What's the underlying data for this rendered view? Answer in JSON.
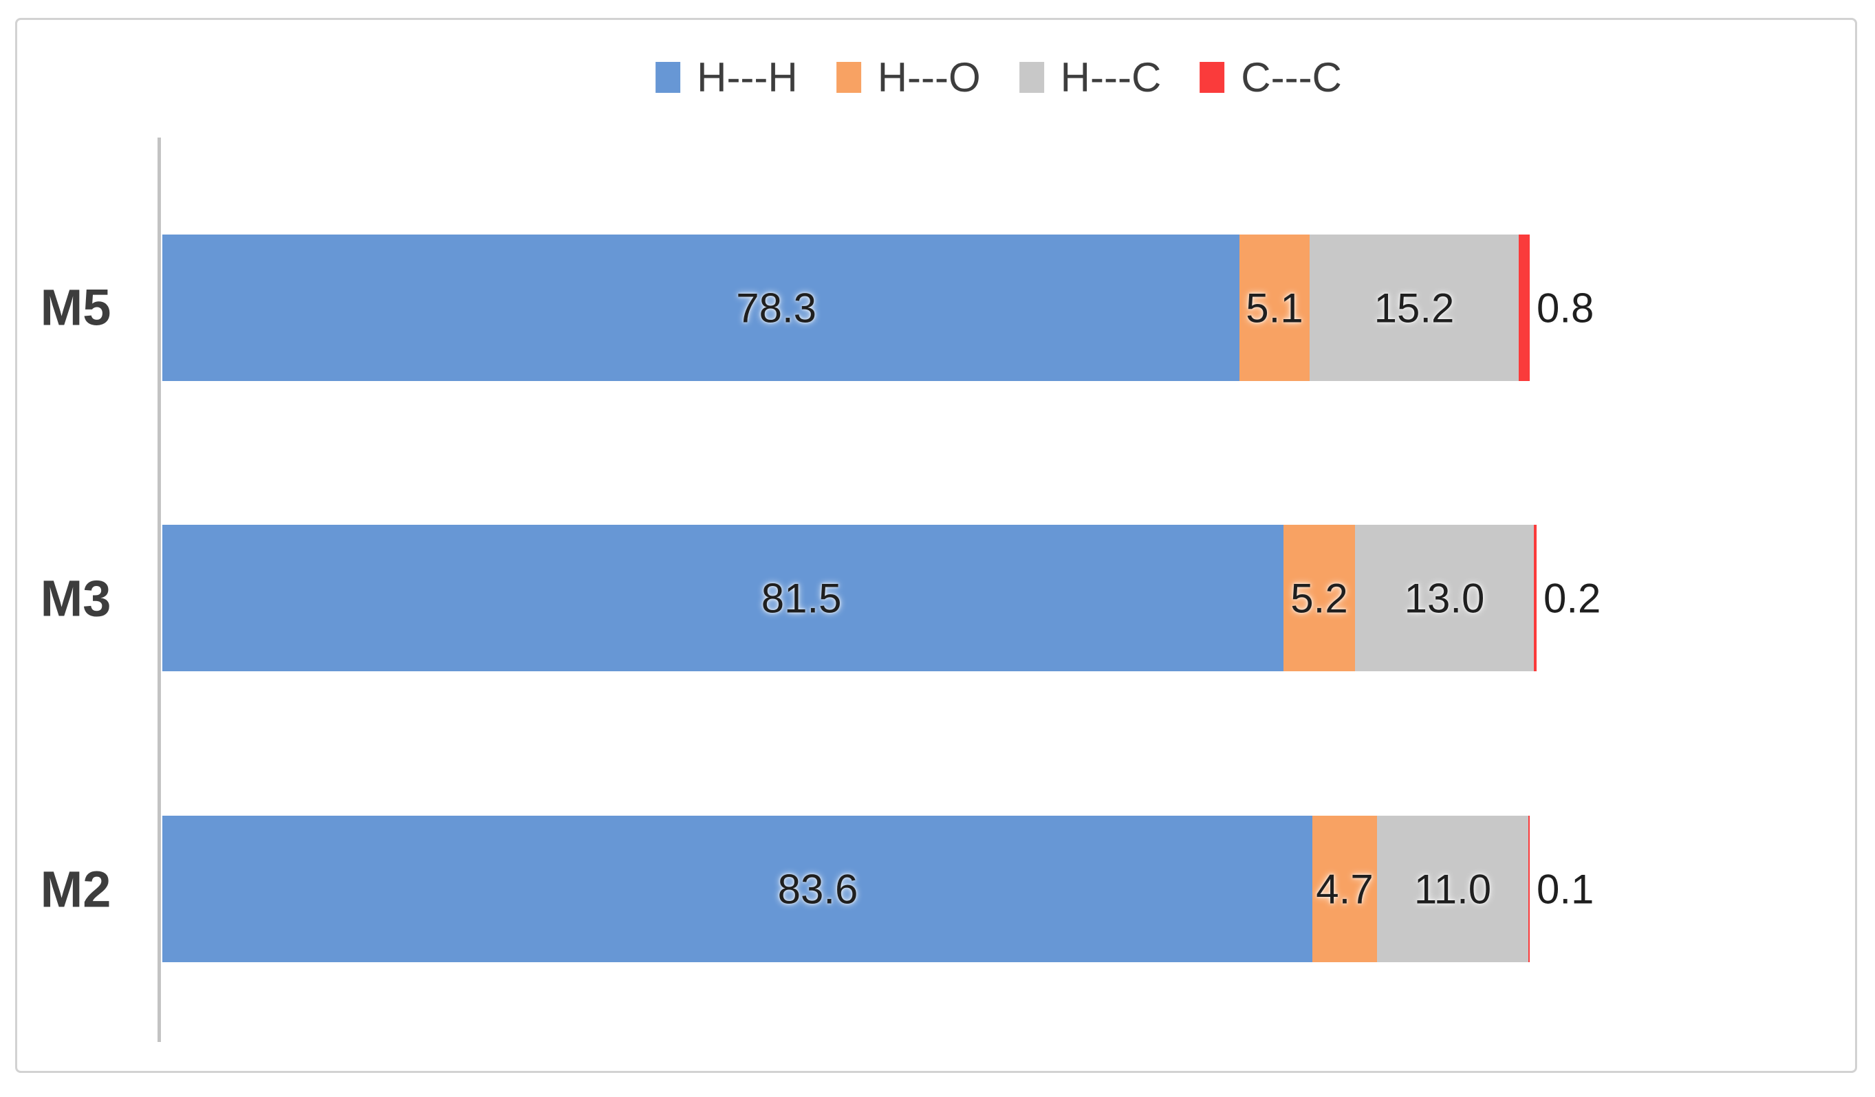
{
  "figure": {
    "background": "#ffffff",
    "frame_color": "#d2d2d2",
    "axis_line_color": "#c3c3c3",
    "label_text_color": "#3d3d3d",
    "value_text_color": "#1f1f1f"
  },
  "legend": {
    "items": [
      {
        "label": "H---H",
        "color": "#6797D5"
      },
      {
        "label": "H---O",
        "color": "#F8A263"
      },
      {
        "label": "H---C",
        "color": "#C8C8C8"
      },
      {
        "label": "C---C",
        "color": "#FA3B3B"
      }
    ]
  },
  "chart_data": {
    "type": "bar",
    "orientation": "horizontal",
    "stacked": true,
    "title": "",
    "xlabel": "",
    "ylabel": "",
    "categories": [
      "M5",
      "M3",
      "M2"
    ],
    "series": [
      {
        "name": "H---H",
        "color": "#6797D5",
        "values": [
          78.3,
          81.5,
          83.6
        ],
        "labels": [
          "78.3",
          "81.5",
          "83.6"
        ]
      },
      {
        "name": "H---O",
        "color": "#F8A263",
        "values": [
          5.1,
          5.2,
          4.7
        ],
        "labels": [
          "5.1",
          "5.2",
          "4.7"
        ]
      },
      {
        "name": "H---C",
        "color": "#C8C8C8",
        "values": [
          15.2,
          13.0,
          11.0
        ],
        "labels": [
          "15.2",
          "13.0",
          "11.0"
        ]
      },
      {
        "name": "C---C",
        "color": "#FA3B3B",
        "values": [
          0.8,
          0.2,
          0.1
        ],
        "labels": [
          "0.8",
          "0.2",
          "0.1"
        ]
      }
    ],
    "xlim": [
      0,
      100
    ],
    "grid": false,
    "legend_position": "top",
    "value_labels": "inside-segments, last series labeled outside right"
  }
}
